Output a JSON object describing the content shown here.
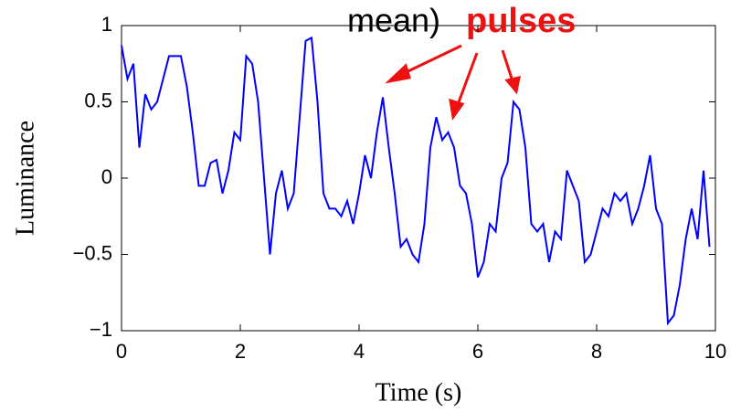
{
  "chart_data": {
    "type": "line",
    "xlabel": "Time (s)",
    "ylabel": "Luminance",
    "annotations": [
      "mean)",
      "pulses"
    ],
    "x": [
      0,
      0.1,
      0.2,
      0.3,
      0.4,
      0.5,
      0.6,
      0.7,
      0.8,
      0.9,
      1,
      1.1,
      1.2,
      1.3,
      1.4,
      1.5,
      1.6,
      1.7,
      1.8,
      1.9,
      2,
      2.1,
      2.2,
      2.3,
      2.4,
      2.5,
      2.6,
      2.7,
      2.8,
      2.9,
      3,
      3.1,
      3.2,
      3.3,
      3.4,
      3.5,
      3.6,
      3.7,
      3.8,
      3.9,
      4,
      4.1,
      4.2,
      4.3,
      4.4,
      4.5,
      4.6,
      4.7,
      4.8,
      4.9,
      5,
      5.1,
      5.2,
      5.3,
      5.4,
      5.5,
      5.6,
      5.7,
      5.8,
      5.9,
      6,
      6.1,
      6.2,
      6.3,
      6.4,
      6.5,
      6.6,
      6.7,
      6.8,
      6.9,
      7,
      7.1,
      7.2,
      7.3,
      7.4,
      7.5,
      7.6,
      7.7,
      7.8,
      7.9,
      8,
      8.1,
      8.2,
      8.3,
      8.4,
      8.5,
      8.6,
      8.7,
      8.8,
      8.9,
      9,
      9.1,
      9.2,
      9.3,
      9.4,
      9.5,
      9.6,
      9.7,
      9.8,
      9.9
    ],
    "series": [
      {
        "name": "Luminance",
        "color": "#0000ff",
        "values": [
          0.87,
          0.65,
          0.75,
          0.2,
          0.55,
          0.45,
          0.5,
          0.65,
          0.8,
          0.8,
          0.8,
          0.6,
          0.3,
          -0.05,
          -0.05,
          0.1,
          0.12,
          -0.1,
          0.05,
          0.3,
          0.25,
          0.8,
          0.75,
          0.5,
          0,
          -0.5,
          -0.1,
          0.05,
          -0.2,
          -0.1,
          0.4,
          0.9,
          0.92,
          0.5,
          -0.1,
          -0.2,
          -0.2,
          -0.25,
          -0.15,
          -0.3,
          -0.1,
          0.15,
          0,
          0.3,
          0.53,
          0.2,
          -0.1,
          -0.45,
          -0.4,
          -0.5,
          -0.55,
          -0.3,
          0.2,
          0.4,
          0.25,
          0.3,
          0.2,
          -0.05,
          -0.1,
          -0.3,
          -0.65,
          -0.55,
          -0.3,
          -0.35,
          0,
          0.1,
          0.5,
          0.45,
          0.2,
          -0.3,
          -0.35,
          -0.3,
          -0.55,
          -0.35,
          -0.4,
          0.05,
          -0.05,
          -0.15,
          -0.55,
          -0.5,
          -0.35,
          -0.2,
          -0.25,
          -0.1,
          -0.15,
          -0.1,
          -0.3,
          -0.2,
          -0.05,
          0.15,
          -0.2,
          -0.3,
          -0.95,
          -0.9,
          -0.7,
          -0.4,
          -0.2,
          -0.4,
          0.05,
          -0.45
        ]
      }
    ],
    "xlim": [
      0,
      10
    ],
    "xticks": [
      0,
      2,
      4,
      6,
      8,
      10
    ],
    "ylim": [
      -1,
      1
    ],
    "yticks": [
      {
        "value": -1,
        "label": "−1"
      },
      {
        "value": -0.5,
        "label": "−0.5"
      },
      0,
      0.5,
      1
    ],
    "grid": false
  }
}
